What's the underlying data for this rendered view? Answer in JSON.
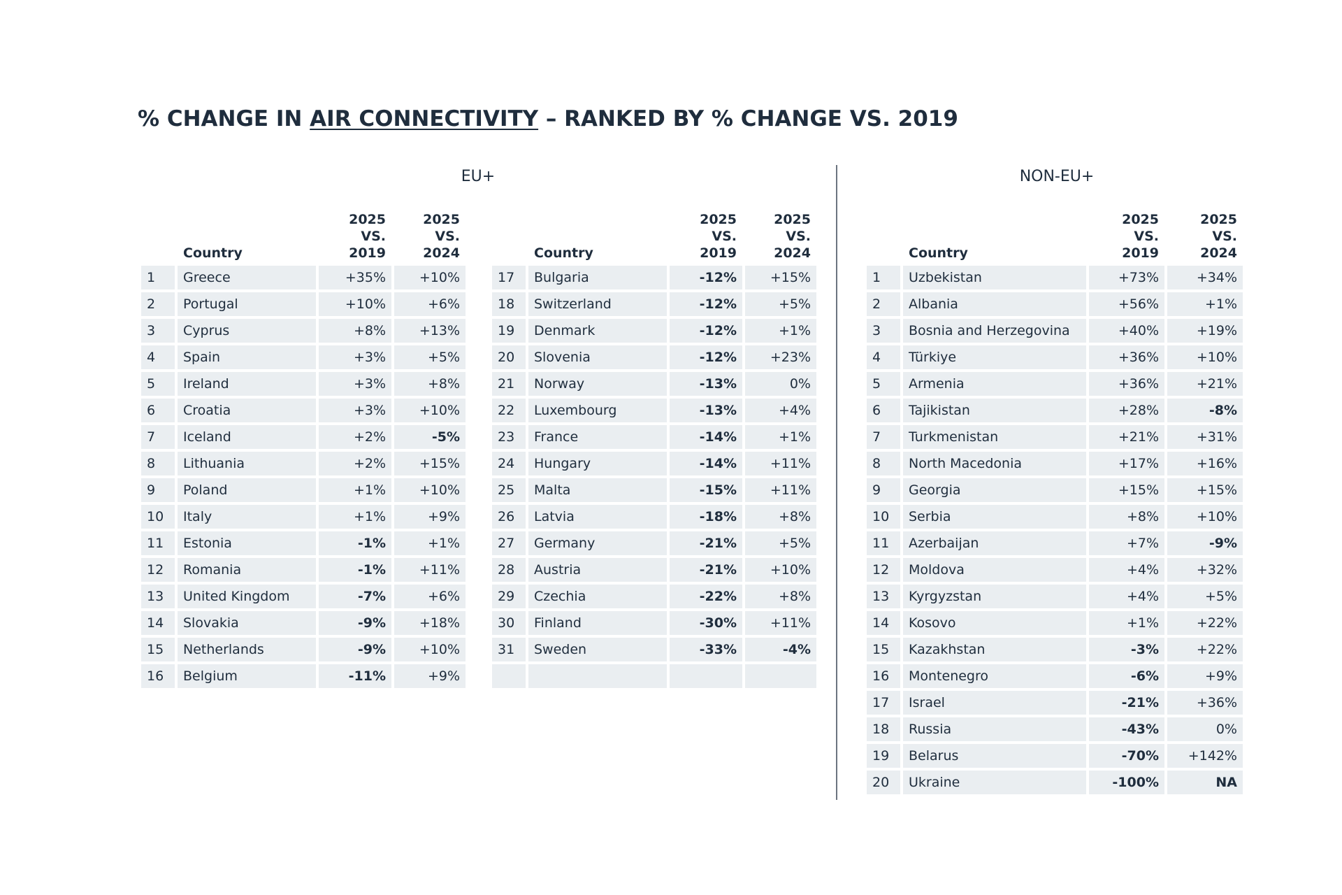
{
  "title": {
    "prefix": "% CHANGE IN ",
    "underlined": "AIR CONNECTIVITY",
    "suffix": " – RANKED BY % CHANGE VS. 2019"
  },
  "groups": {
    "eu": "EU+",
    "non_eu": "NON-EU+"
  },
  "headers": {
    "country": "Country",
    "vs2019_line1": "2025",
    "vs2019_line2": "VS. 2019",
    "vs2024_line1": "2025",
    "vs2024_line2": "VS. 2024"
  },
  "colors": {
    "positive": "#5cb87a",
    "negative": "#1f2d3d",
    "row_bg": "#eaeef1"
  },
  "chart_data": {
    "type": "table",
    "title": "% CHANGE IN AIR CONNECTIVITY – RANKED BY % CHANGE VS. 2019",
    "columns": [
      "Country",
      "2025 VS. 2019",
      "2025 VS. 2024"
    ],
    "eu_left": [
      {
        "rank": "1",
        "country": "Greece",
        "vs2019": "+35%",
        "vs2024": "+10%"
      },
      {
        "rank": "2",
        "country": "Portugal",
        "vs2019": "+10%",
        "vs2024": "+6%"
      },
      {
        "rank": "3",
        "country": "Cyprus",
        "vs2019": "+8%",
        "vs2024": "+13%"
      },
      {
        "rank": "4",
        "country": "Spain",
        "vs2019": "+3%",
        "vs2024": "+5%"
      },
      {
        "rank": "5",
        "country": "Ireland",
        "vs2019": "+3%",
        "vs2024": "+8%"
      },
      {
        "rank": "6",
        "country": "Croatia",
        "vs2019": "+3%",
        "vs2024": "+10%"
      },
      {
        "rank": "7",
        "country": "Iceland",
        "vs2019": "+2%",
        "vs2024": "-5%"
      },
      {
        "rank": "8",
        "country": "Lithuania",
        "vs2019": "+2%",
        "vs2024": "+15%"
      },
      {
        "rank": "9",
        "country": "Poland",
        "vs2019": "+1%",
        "vs2024": "+10%"
      },
      {
        "rank": "10",
        "country": "Italy",
        "vs2019": "+1%",
        "vs2024": "+9%"
      },
      {
        "rank": "11",
        "country": "Estonia",
        "vs2019": "-1%",
        "vs2024": "+1%"
      },
      {
        "rank": "12",
        "country": "Romania",
        "vs2019": "-1%",
        "vs2024": "+11%"
      },
      {
        "rank": "13",
        "country": "United Kingdom",
        "vs2019": "-7%",
        "vs2024": "+6%"
      },
      {
        "rank": "14",
        "country": "Slovakia",
        "vs2019": "-9%",
        "vs2024": "+18%"
      },
      {
        "rank": "15",
        "country": "Netherlands",
        "vs2019": "-9%",
        "vs2024": "+10%"
      },
      {
        "rank": "16",
        "country": "Belgium",
        "vs2019": "-11%",
        "vs2024": "+9%"
      }
    ],
    "eu_right": [
      {
        "rank": "17",
        "country": "Bulgaria",
        "vs2019": "-12%",
        "vs2024": "+15%"
      },
      {
        "rank": "18",
        "country": "Switzerland",
        "vs2019": "-12%",
        "vs2024": "+5%"
      },
      {
        "rank": "19",
        "country": "Denmark",
        "vs2019": "-12%",
        "vs2024": "+1%"
      },
      {
        "rank": "20",
        "country": "Slovenia",
        "vs2019": "-12%",
        "vs2024": "+23%"
      },
      {
        "rank": "21",
        "country": "Norway",
        "vs2019": "-13%",
        "vs2024": "0%"
      },
      {
        "rank": "22",
        "country": "Luxembourg",
        "vs2019": "-13%",
        "vs2024": "+4%"
      },
      {
        "rank": "23",
        "country": "France",
        "vs2019": "-14%",
        "vs2024": "+1%"
      },
      {
        "rank": "24",
        "country": "Hungary",
        "vs2019": "-14%",
        "vs2024": "+11%"
      },
      {
        "rank": "25",
        "country": "Malta",
        "vs2019": "-15%",
        "vs2024": "+11%"
      },
      {
        "rank": "26",
        "country": "Latvia",
        "vs2019": "-18%",
        "vs2024": "+8%"
      },
      {
        "rank": "27",
        "country": "Germany",
        "vs2019": "-21%",
        "vs2024": "+5%"
      },
      {
        "rank": "28",
        "country": "Austria",
        "vs2019": "-21%",
        "vs2024": "+10%"
      },
      {
        "rank": "29",
        "country": "Czechia",
        "vs2019": "-22%",
        "vs2024": "+8%"
      },
      {
        "rank": "30",
        "country": "Finland",
        "vs2019": "-30%",
        "vs2024": "+11%"
      },
      {
        "rank": "31",
        "country": "Sweden",
        "vs2019": "-33%",
        "vs2024": "-4%"
      },
      {
        "rank": "",
        "country": "",
        "vs2019": "",
        "vs2024": ""
      }
    ],
    "non_eu": [
      {
        "rank": "1",
        "country": "Uzbekistan",
        "vs2019": "+73%",
        "vs2024": "+34%"
      },
      {
        "rank": "2",
        "country": "Albania",
        "vs2019": "+56%",
        "vs2024": "+1%"
      },
      {
        "rank": "3",
        "country": "Bosnia and Herzegovina",
        "vs2019": "+40%",
        "vs2024": "+19%"
      },
      {
        "rank": "4",
        "country": "Türkiye",
        "vs2019": "+36%",
        "vs2024": "+10%"
      },
      {
        "rank": "5",
        "country": "Armenia",
        "vs2019": "+36%",
        "vs2024": "+21%"
      },
      {
        "rank": "6",
        "country": "Tajikistan",
        "vs2019": "+28%",
        "vs2024": "-8%"
      },
      {
        "rank": "7",
        "country": "Turkmenistan",
        "vs2019": "+21%",
        "vs2024": "+31%"
      },
      {
        "rank": "8",
        "country": "North Macedonia",
        "vs2019": "+17%",
        "vs2024": "+16%"
      },
      {
        "rank": "9",
        "country": "Georgia",
        "vs2019": "+15%",
        "vs2024": "+15%"
      },
      {
        "rank": "10",
        "country": "Serbia",
        "vs2019": "+8%",
        "vs2024": "+10%"
      },
      {
        "rank": "11",
        "country": "Azerbaijan",
        "vs2019": "+7%",
        "vs2024": "-9%"
      },
      {
        "rank": "12",
        "country": "Moldova",
        "vs2019": "+4%",
        "vs2024": "+32%"
      },
      {
        "rank": "13",
        "country": "Kyrgyzstan",
        "vs2019": "+4%",
        "vs2024": "+5%"
      },
      {
        "rank": "14",
        "country": "Kosovo",
        "vs2019": "+1%",
        "vs2024": "+22%"
      },
      {
        "rank": "15",
        "country": "Kazakhstan",
        "vs2019": "-3%",
        "vs2024": "+22%"
      },
      {
        "rank": "16",
        "country": "Montenegro",
        "vs2019": "-6%",
        "vs2024": "+9%"
      },
      {
        "rank": "17",
        "country": "Israel",
        "vs2019": "-21%",
        "vs2024": "+36%"
      },
      {
        "rank": "18",
        "country": "Russia",
        "vs2019": "-43%",
        "vs2024": "0%"
      },
      {
        "rank": "19",
        "country": "Belarus",
        "vs2019": "-70%",
        "vs2024": "+142%"
      },
      {
        "rank": "20",
        "country": "Ukraine",
        "vs2019": "-100%",
        "vs2024": "NA"
      }
    ]
  }
}
